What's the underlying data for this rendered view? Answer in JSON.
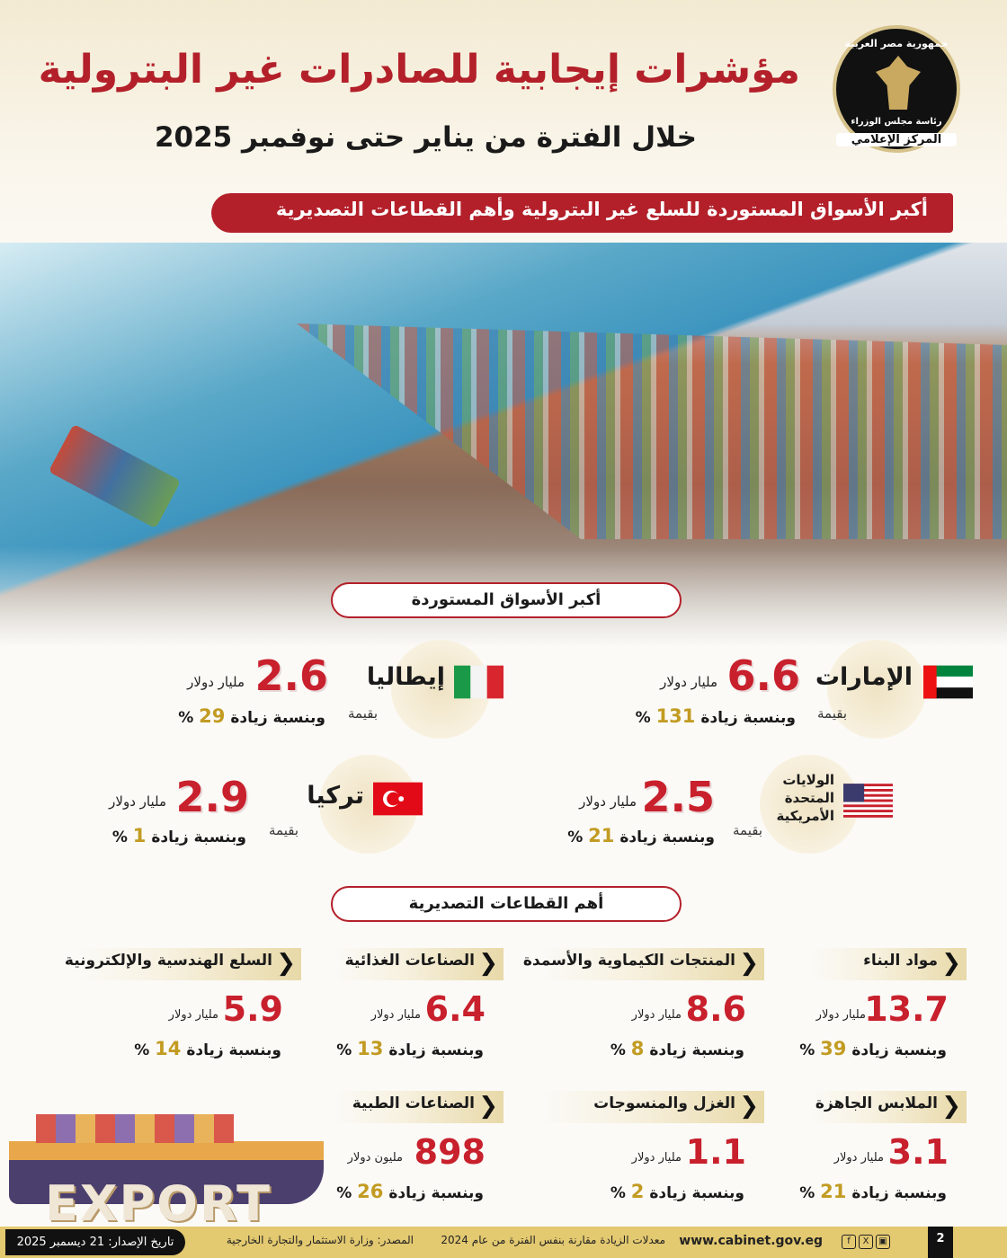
{
  "header": {
    "title": "مؤشرات إيجابية للصادرات غير البترولية",
    "subtitle": "خلال الفترة من يناير حتى نوفمبر 2025",
    "banner": "أكبر الأسواق المستوردة للسلع غير البترولية وأهم القطاعات التصديرية"
  },
  "logo": {
    "line1": "جمهورية مصر العربية",
    "line2": "رئاسة مجلس الوزراء",
    "line3": "المركز الإعلامي"
  },
  "markets": {
    "heading": "أكبر الأسواق المستوردة",
    "value_prefix": "بقيمة",
    "items": [
      {
        "country": "الإمارات",
        "value": "6.6",
        "unit": "مليار دولار",
        "increase_label": "وبنسبة زيادة",
        "increase": "131",
        "pct": "%",
        "flag": "uae"
      },
      {
        "country": "إيطاليا",
        "value": "2.6",
        "unit": "مليار دولار",
        "increase_label": "وبنسبة زيادة",
        "increase": "29",
        "pct": "%",
        "flag": "italy"
      },
      {
        "country": "الولايات المتحدة الأمريكية",
        "value": "2.5",
        "unit": "مليار دولار",
        "increase_label": "وبنسبة زيادة",
        "increase": "21",
        "pct": "%",
        "flag": "usa"
      },
      {
        "country": "تركيا",
        "value": "2.9",
        "unit": "مليار دولار",
        "increase_label": "وبنسبة زيادة",
        "increase": "1",
        "pct": "%",
        "flag": "turkey"
      }
    ]
  },
  "sectors": {
    "heading": "أهم القطاعات التصديرية",
    "items": [
      {
        "name": "مواد البناء",
        "value": "13.7",
        "unit": "مليار دولار",
        "increase_label": "وبنسبة زيادة",
        "increase": "39",
        "pct": "%"
      },
      {
        "name": "المنتجات الكيماوية والأسمدة",
        "value": "8.6",
        "unit": "مليار دولار",
        "increase_label": "وبنسبة زيادة",
        "increase": "8",
        "pct": "%"
      },
      {
        "name": "الصناعات الغذائية",
        "value": "6.4",
        "unit": "مليار دولار",
        "increase_label": "وبنسبة زيادة",
        "increase": "13",
        "pct": "%"
      },
      {
        "name": "السلع الهندسية والإلكترونية",
        "value": "5.9",
        "unit": "مليار دولار",
        "increase_label": "وبنسبة زيادة",
        "increase": "14",
        "pct": "%"
      },
      {
        "name": "الملابس الجاهزة",
        "value": "3.1",
        "unit": "مليار دولار",
        "increase_label": "وبنسبة زيادة",
        "increase": "21",
        "pct": "%"
      },
      {
        "name": "الغزل والمنسوجات",
        "value": "1.1",
        "unit": "مليار دولار",
        "increase_label": "وبنسبة زيادة",
        "increase": "2",
        "pct": "%"
      },
      {
        "name": "الصناعات الطبية",
        "value": "898",
        "unit": "مليون دولار",
        "increase_label": "وبنسبة زيادة",
        "increase": "26",
        "pct": "%"
      }
    ]
  },
  "illustration": {
    "text": "EXPORT"
  },
  "footer": {
    "page": "2",
    "website": "www.cabinet.gov.eg",
    "note": "معدلات الزيادة مقارنة بنفس الفترة من عام 2024",
    "source": "المصدر: وزارة الاستثمار والتجارة الخارجية",
    "date": "تاريخ الإصدار: 21 ديسمبر 2025",
    "social": [
      "f",
      "X",
      "▣"
    ]
  },
  "colors": {
    "accent": "#b3202a",
    "gold": "#c29b22",
    "footer": "#e3c970"
  }
}
